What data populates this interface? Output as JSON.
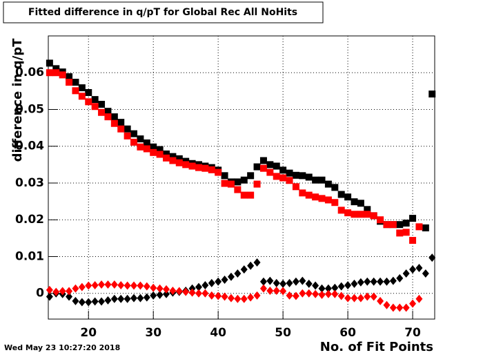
{
  "chart_data": {
    "type": "scatter",
    "title": "Fitted difference in q/pT for Global Rec All NoHits",
    "xlabel": "No. of Fit Points",
    "ylabel": "difference in q/pT",
    "annotation": "Wed May 23 10:27:20 2018",
    "x": [
      14,
      15,
      16,
      17,
      18,
      19,
      20,
      21,
      22,
      23,
      24,
      25,
      26,
      27,
      28,
      29,
      30,
      31,
      32,
      33,
      34,
      35,
      36,
      37,
      38,
      39,
      40,
      41,
      42,
      43,
      44,
      45,
      46,
      47,
      48,
      49,
      50,
      51,
      52,
      53,
      54,
      55,
      56,
      57,
      58,
      59,
      60,
      61,
      62,
      63,
      64,
      65,
      66,
      67,
      68,
      69,
      70,
      71,
      72,
      73
    ],
    "series": [
      {
        "color": "#000000",
        "marker": "square",
        "values": [
          0.0626,
          0.0611,
          0.0602,
          0.0589,
          0.0574,
          0.0559,
          0.0546,
          0.0527,
          0.0514,
          0.0495,
          0.048,
          0.0465,
          0.0447,
          0.0434,
          0.042,
          0.0409,
          0.0398,
          0.0391,
          0.0379,
          0.0372,
          0.0366,
          0.0359,
          0.0353,
          0.035,
          0.0346,
          0.0342,
          0.0335,
          0.032,
          0.0303,
          0.0303,
          0.0308,
          0.032,
          0.0344,
          0.0361,
          0.035,
          0.0346,
          0.0335,
          0.0327,
          0.0321,
          0.032,
          0.0316,
          0.0308,
          0.0308,
          0.0297,
          0.0288,
          0.0269,
          0.0262,
          0.0249,
          0.0245,
          0.0228,
          0.0211,
          0.0196,
          0.0187,
          0.0187,
          0.0187,
          0.0191,
          0.0204,
          null,
          0.0178,
          0.0542
        ]
      },
      {
        "color": "#ff0000",
        "marker": "square",
        "values": [
          0.06,
          0.06,
          0.0594,
          0.0574,
          0.0551,
          0.0536,
          0.0521,
          0.0508,
          0.0492,
          0.048,
          0.0462,
          0.0447,
          0.0428,
          0.0411,
          0.0398,
          0.0393,
          0.0383,
          0.0378,
          0.0368,
          0.0361,
          0.0355,
          0.035,
          0.0346,
          0.0342,
          0.034,
          0.0336,
          0.0329,
          0.0299,
          0.0297,
          0.0282,
          0.0267,
          0.0267,
          0.0297,
          0.034,
          0.0329,
          0.0318,
          0.0314,
          0.0307,
          0.029,
          0.0273,
          0.0267,
          0.0262,
          0.0258,
          0.0254,
          0.0247,
          0.0226,
          0.0219,
          0.0215,
          0.0215,
          0.0215,
          0.0211,
          0.02,
          0.0187,
          0.0187,
          0.0164,
          0.0166,
          0.0144,
          0.0181,
          null,
          null
        ]
      },
      {
        "color": "#000000",
        "marker": "diamond",
        "values": [
          -0.0009,
          0,
          -0.0002,
          -0.0009,
          -0.0021,
          -0.0024,
          -0.0024,
          -0.0022,
          -0.0022,
          -0.0019,
          -0.0015,
          -0.0015,
          -0.0015,
          -0.0013,
          -0.0013,
          -0.0011,
          -0.0006,
          -0.0004,
          -0.0002,
          0.0002,
          0.0004,
          0.0007,
          0.0013,
          0.0017,
          0.0022,
          0.0028,
          0.0032,
          0.0037,
          0.0045,
          0.0054,
          0.0065,
          0.0075,
          0.0084,
          0.0032,
          0.0034,
          0.0028,
          0.0026,
          0.0028,
          0.0032,
          0.0034,
          0.0026,
          0.0021,
          0.0013,
          0.0013,
          0.0015,
          0.0019,
          0.0022,
          0.0026,
          0.003,
          0.0032,
          0.0032,
          0.0032,
          0.0032,
          0.0034,
          0.0041,
          0.0054,
          0.0065,
          0.0069,
          0.0054,
          0.0097
        ]
      },
      {
        "color": "#ff0000",
        "marker": "diamond",
        "values": [
          0.0009,
          0.0004,
          0.0006,
          0.0006,
          0.0013,
          0.0017,
          0.0021,
          0.0022,
          0.0024,
          0.0024,
          0.0024,
          0.0022,
          0.0021,
          0.0021,
          0.0021,
          0.0019,
          0.0015,
          0.0013,
          0.0011,
          0.0007,
          0.0006,
          0.0004,
          0.0002,
          0,
          0,
          -0.0006,
          -0.0007,
          -0.0009,
          -0.0013,
          -0.0015,
          -0.0015,
          -0.0011,
          -0.0006,
          0.0013,
          0.0007,
          0.0007,
          0.0006,
          -0.0006,
          -0.0007,
          0,
          0,
          -0.0002,
          -0.0004,
          -0.0002,
          -0.0002,
          -0.0007,
          -0.0013,
          -0.0013,
          -0.0013,
          -0.0009,
          -0.0009,
          -0.0021,
          -0.0032,
          -0.0039,
          -0.0039,
          -0.0039,
          -0.0028,
          -0.0015,
          null,
          null
        ]
      }
    ],
    "xlim": [
      13.8,
      73.4
    ],
    "ylim": [
      -0.007,
      0.07
    ],
    "xticks": [
      20,
      30,
      40,
      50,
      60,
      70
    ],
    "yticks": [
      0,
      0.01,
      0.02,
      0.03,
      0.04,
      0.05,
      0.06
    ],
    "grid": true
  }
}
